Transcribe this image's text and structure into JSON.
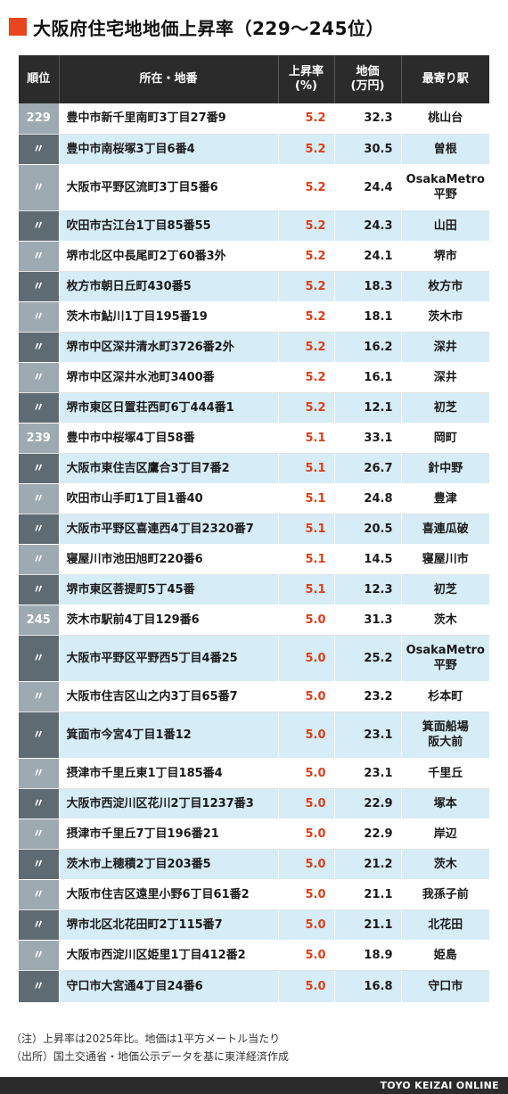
{
  "title": "大阪府住宅地地価上昇率（229～245位）",
  "headers": {
    "rank": "順位",
    "address": "所在・地番",
    "rate_line1": "上昇率",
    "rate_line2": "(%)",
    "price_line1": "地価",
    "price_line2": "(万円)",
    "station": "最寄り駅"
  },
  "rows": [
    {
      "rank": "229",
      "address": "豊中市新千里南町3丁目27番9",
      "rate": "5.2",
      "price": "32.3",
      "station": [
        "桃山台"
      ]
    },
    {
      "rank": "〃",
      "address": "豊中市南桜塚3丁目6番4",
      "rate": "5.2",
      "price": "30.5",
      "station": [
        "曽根"
      ]
    },
    {
      "rank": "〃",
      "address": "大阪市平野区流町3丁目5番6",
      "rate": "5.2",
      "price": "24.4",
      "station": [
        "OsakaMetro",
        "平野"
      ]
    },
    {
      "rank": "〃",
      "address": "吹田市古江台1丁目85番55",
      "rate": "5.2",
      "price": "24.3",
      "station": [
        "山田"
      ]
    },
    {
      "rank": "〃",
      "address": "堺市北区中長尾町2丁60番3外",
      "rate": "5.2",
      "price": "24.1",
      "station": [
        "堺市"
      ]
    },
    {
      "rank": "〃",
      "address": "枚方市朝日丘町430番5",
      "rate": "5.2",
      "price": "18.3",
      "station": [
        "枚方市"
      ]
    },
    {
      "rank": "〃",
      "address": "茨木市鮎川1丁目195番19",
      "rate": "5.2",
      "price": "18.1",
      "station": [
        "茨木市"
      ]
    },
    {
      "rank": "〃",
      "address": "堺市中区深井清水町3726番2外",
      "rate": "5.2",
      "price": "16.2",
      "station": [
        "深井"
      ]
    },
    {
      "rank": "〃",
      "address": "堺市中区深井水池町3400番",
      "rate": "5.2",
      "price": "16.1",
      "station": [
        "深井"
      ]
    },
    {
      "rank": "〃",
      "address": "堺市東区日置荘西町6丁444番1",
      "rate": "5.2",
      "price": "12.1",
      "station": [
        "初芝"
      ]
    },
    {
      "rank": "239",
      "address": "豊中市中桜塚4丁目58番",
      "rate": "5.1",
      "price": "33.1",
      "station": [
        "岡町"
      ]
    },
    {
      "rank": "〃",
      "address": "大阪市東住吉区鷹合3丁目7番2",
      "rate": "5.1",
      "price": "26.7",
      "station": [
        "針中野"
      ]
    },
    {
      "rank": "〃",
      "address": "吹田市山手町1丁目1番40",
      "rate": "5.1",
      "price": "24.8",
      "station": [
        "豊津"
      ]
    },
    {
      "rank": "〃",
      "address": "大阪市平野区喜連西4丁目2320番7",
      "rate": "5.1",
      "price": "20.5",
      "station": [
        "喜連瓜破"
      ]
    },
    {
      "rank": "〃",
      "address": "寝屋川市池田旭町220番6",
      "rate": "5.1",
      "price": "14.5",
      "station": [
        "寝屋川市"
      ]
    },
    {
      "rank": "〃",
      "address": "堺市東区菩提町5丁45番",
      "rate": "5.1",
      "price": "12.3",
      "station": [
        "初芝"
      ]
    },
    {
      "rank": "245",
      "address": "茨木市駅前4丁目129番6",
      "rate": "5.0",
      "price": "31.3",
      "station": [
        "茨木"
      ]
    },
    {
      "rank": "〃",
      "address": "大阪市平野区平野西5丁目4番25",
      "rate": "5.0",
      "price": "25.2",
      "station": [
        "OsakaMetro",
        "平野"
      ]
    },
    {
      "rank": "〃",
      "address": "大阪市住吉区山之内3丁目65番7",
      "rate": "5.0",
      "price": "23.2",
      "station": [
        "杉本町"
      ]
    },
    {
      "rank": "〃",
      "address": "箕面市今宮4丁目1番12",
      "rate": "5.0",
      "price": "23.1",
      "station": [
        "箕面船場",
        "阪大前"
      ]
    },
    {
      "rank": "〃",
      "address": "摂津市千里丘東1丁目185番4",
      "rate": "5.0",
      "price": "23.1",
      "station": [
        "千里丘"
      ]
    },
    {
      "rank": "〃",
      "address": "大阪市西淀川区花川2丁目1237番3",
      "rate": "5.0",
      "price": "22.9",
      "station": [
        "塚本"
      ]
    },
    {
      "rank": "〃",
      "address": "摂津市千里丘7丁目196番21",
      "rate": "5.0",
      "price": "22.9",
      "station": [
        "岸辺"
      ]
    },
    {
      "rank": "〃",
      "address": "茨木市上穂積2丁目203番5",
      "rate": "5.0",
      "price": "21.2",
      "station": [
        "茨木"
      ]
    },
    {
      "rank": "〃",
      "address": "大阪市住吉区遠里小野6丁目61番2",
      "rate": "5.0",
      "price": "21.1",
      "station": [
        "我孫子前"
      ]
    },
    {
      "rank": "〃",
      "address": "堺市北区北花田町2丁115番7",
      "rate": "5.0",
      "price": "21.1",
      "station": [
        "北花田"
      ]
    },
    {
      "rank": "〃",
      "address": "大阪市西淀川区姫里1丁目412番2",
      "rate": "5.0",
      "price": "18.9",
      "station": [
        "姫島"
      ]
    },
    {
      "rank": "〃",
      "address": "守口市大宮通4丁目24番6",
      "rate": "5.0",
      "price": "16.8",
      "station": [
        "守口市"
      ]
    }
  ],
  "notes": {
    "note": "（注）上昇率は2025年比。地価は1平方メートル当たり",
    "source": "（出所）国土交通省・地価公示データを基に東洋経済作成"
  },
  "credit": "TOYO KEIZAI ONLINE",
  "colors": {
    "accent": "#e8461e",
    "rate_text": "#d9401a",
    "header_bg": "#2b2b2b",
    "row_tint": "#d6ecf6"
  }
}
